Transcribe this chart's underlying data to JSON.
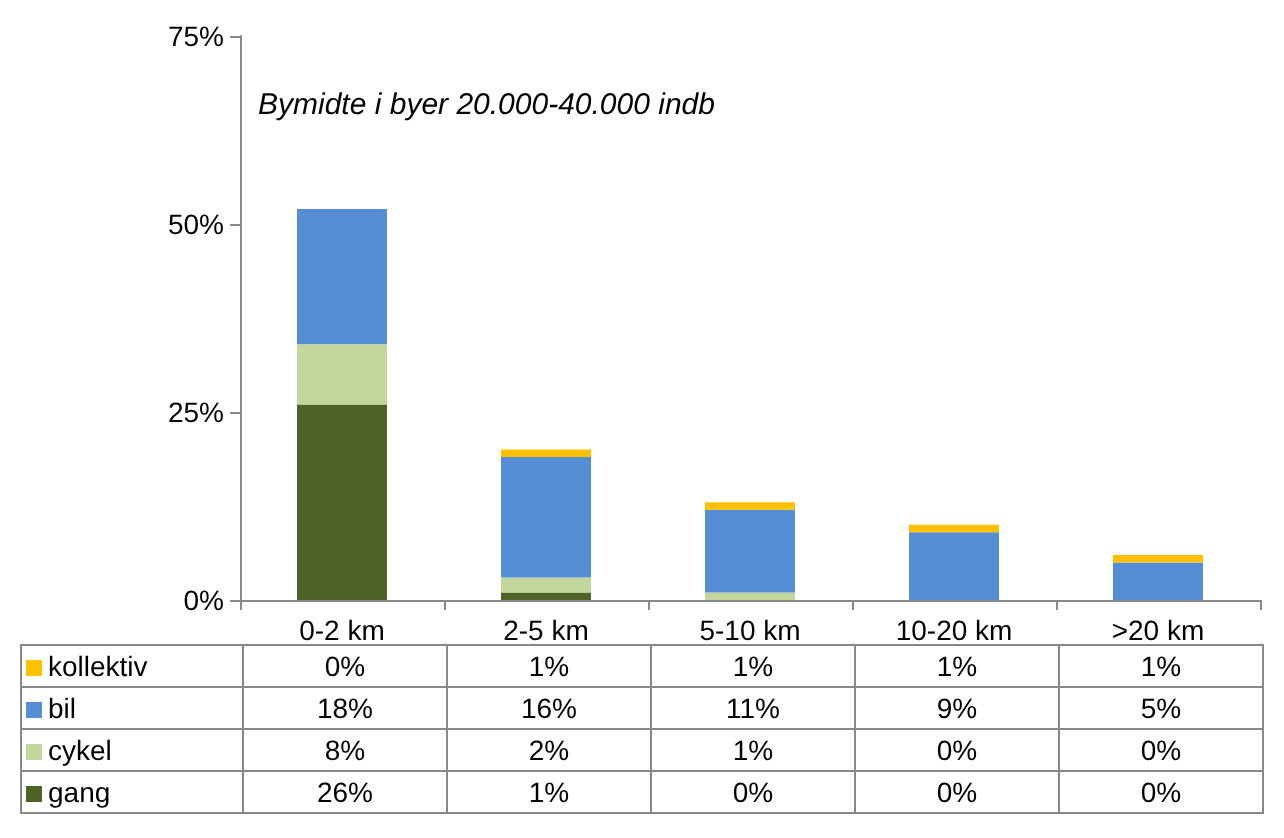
{
  "chart_data": {
    "type": "bar",
    "title": "Bymidte i byer 20.000-40.000 indb",
    "stacked": true,
    "legend": "bottom",
    "grid": false,
    "categories": [
      "0-2 km",
      "2-5 km",
      "5-10 km",
      "10-20 km",
      ">20 km"
    ],
    "ylim": [
      0,
      75
    ],
    "yticks": [
      {
        "value": 0,
        "label": "0%"
      },
      {
        "value": 25,
        "label": "25%"
      },
      {
        "value": 50,
        "label": "50%"
      },
      {
        "value": 75,
        "label": "75%"
      }
    ],
    "series": [
      {
        "name": "gang",
        "color": "#4f6228",
        "values": [
          26,
          1,
          0,
          0,
          0
        ],
        "value_labels": [
          "26%",
          "1%",
          "0%",
          "0%",
          "0%"
        ]
      },
      {
        "name": "cykel",
        "color": "#c3d69b",
        "values": [
          8,
          2,
          1,
          0,
          0
        ],
        "value_labels": [
          "8%",
          "2%",
          "1%",
          "0%",
          "0%"
        ]
      },
      {
        "name": "bil",
        "color": "#558ed5",
        "values": [
          18,
          16,
          11,
          9,
          5
        ],
        "value_labels": [
          "18%",
          "16%",
          "11%",
          "9%",
          "5%"
        ]
      },
      {
        "name": "kollektiv",
        "color": "#ffc000",
        "values": [
          0,
          1,
          1,
          1,
          1
        ],
        "value_labels": [
          "0%",
          "1%",
          "1%",
          "1%",
          "1%"
        ]
      }
    ]
  }
}
